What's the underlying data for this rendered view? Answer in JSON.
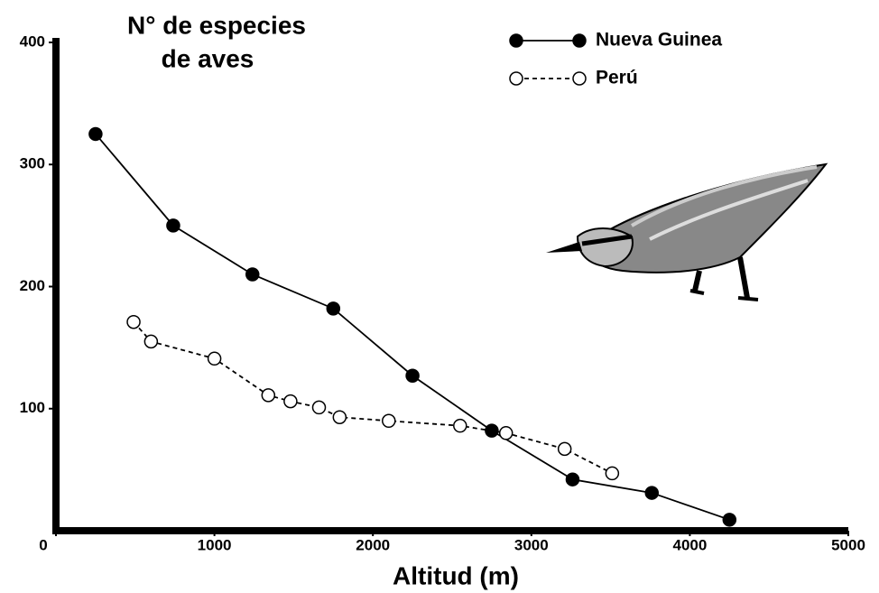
{
  "chart_data": {
    "type": "line",
    "ylabel": [
      "N° de especies",
      "de aves"
    ],
    "xlabel": "Altitud (m)",
    "xlim": [
      0,
      5000
    ],
    "xticks": [
      0,
      1000,
      2000,
      3000,
      4000,
      5000
    ],
    "ylim": [
      0,
      400
    ],
    "yticks": [
      100,
      200,
      300,
      400
    ],
    "legend": "upper right",
    "series": [
      {
        "name": "Nueva Guinea",
        "color": "#000000",
        "marker": "filled",
        "linestyle": "solid",
        "x": [
          250,
          740,
          1240,
          1750,
          2250,
          2750,
          3260,
          3760,
          4250
        ],
        "values": [
          325,
          250,
          210,
          182,
          127,
          82,
          42,
          31,
          9
        ]
      },
      {
        "name": "Perú",
        "color": "#000000",
        "marker": "open",
        "linestyle": "dashed",
        "x": [
          490,
          600,
          1000,
          1340,
          1480,
          1660,
          1790,
          2100,
          2550,
          2840,
          3210,
          3510
        ],
        "values": [
          171,
          155,
          141,
          111,
          106,
          101,
          93,
          90,
          86,
          80,
          67,
          47
        ]
      }
    ]
  }
}
